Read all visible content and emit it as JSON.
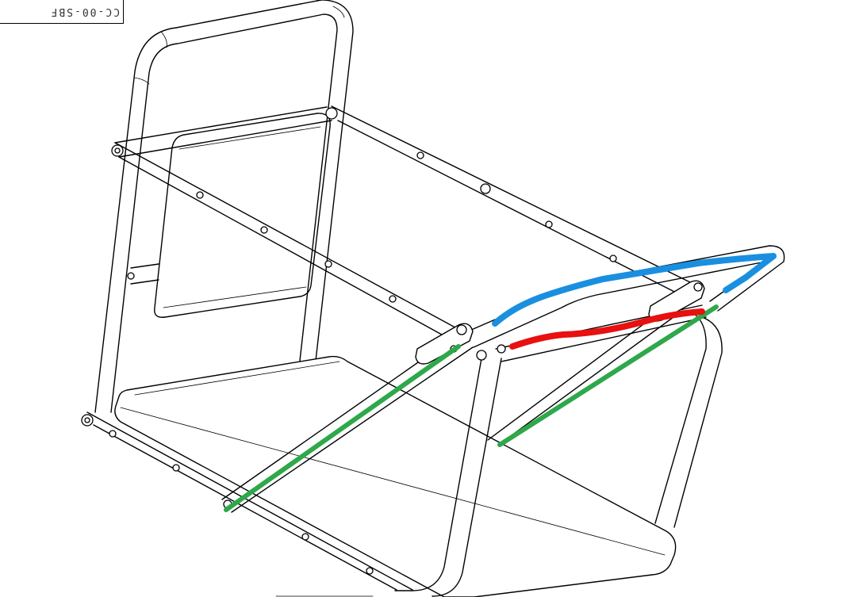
{
  "drawing": {
    "part_label": "CC-00-SBF",
    "colors": {
      "line": "#000000",
      "background": "#ffffff",
      "marker_green": "#2ea84a",
      "marker_blue": "#1a8fe0",
      "marker_red": "#e81010"
    }
  }
}
